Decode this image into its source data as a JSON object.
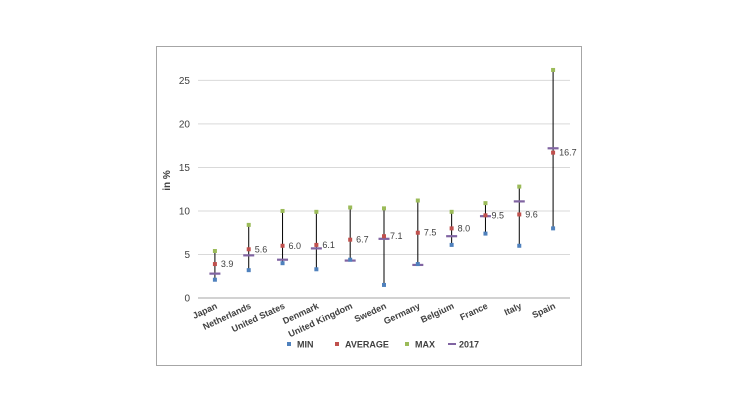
{
  "chart_data": {
    "type": "scatter",
    "ylabel": "in %",
    "xlabel": "",
    "ylim": [
      0,
      27
    ],
    "yticks": [
      0,
      5,
      10,
      15,
      20,
      25
    ],
    "grid": true,
    "legend_position": "bottom",
    "categories": [
      "Japan",
      "Netherlands",
      "United States",
      "Denmark",
      "United Kingdom",
      "Sweden",
      "Germany",
      "Belgium",
      "France",
      "Italy",
      "Spain"
    ],
    "series": [
      {
        "name": "MIN",
        "color": "#4f81bd",
        "marker": "square",
        "values": [
          2.1,
          3.2,
          4.0,
          3.3,
          4.4,
          1.5,
          3.9,
          6.1,
          7.4,
          6.0,
          8.0
        ]
      },
      {
        "name": "AVERAGE",
        "color": "#c0504d",
        "marker": "square",
        "values": [
          3.9,
          5.6,
          6.0,
          6.1,
          6.7,
          7.1,
          7.5,
          8.0,
          9.5,
          9.6,
          16.7
        ]
      },
      {
        "name": "MAX",
        "color": "#9bbb59",
        "marker": "square",
        "values": [
          5.4,
          8.4,
          10.0,
          9.9,
          10.4,
          10.3,
          11.2,
          9.9,
          10.9,
          12.8,
          26.2
        ]
      },
      {
        "name": "2017",
        "color": "#8064a2",
        "marker": "dash",
        "values": [
          2.8,
          4.9,
          4.4,
          5.7,
          4.3,
          6.8,
          3.8,
          7.1,
          9.4,
          11.1,
          17.2
        ]
      }
    ],
    "data_labels": [
      "3.9",
      "5.6",
      "6.0",
      "6.1",
      "6.7",
      "7.1",
      "7.5",
      "8.0",
      "9.5",
      "9.6",
      "16.7"
    ]
  }
}
